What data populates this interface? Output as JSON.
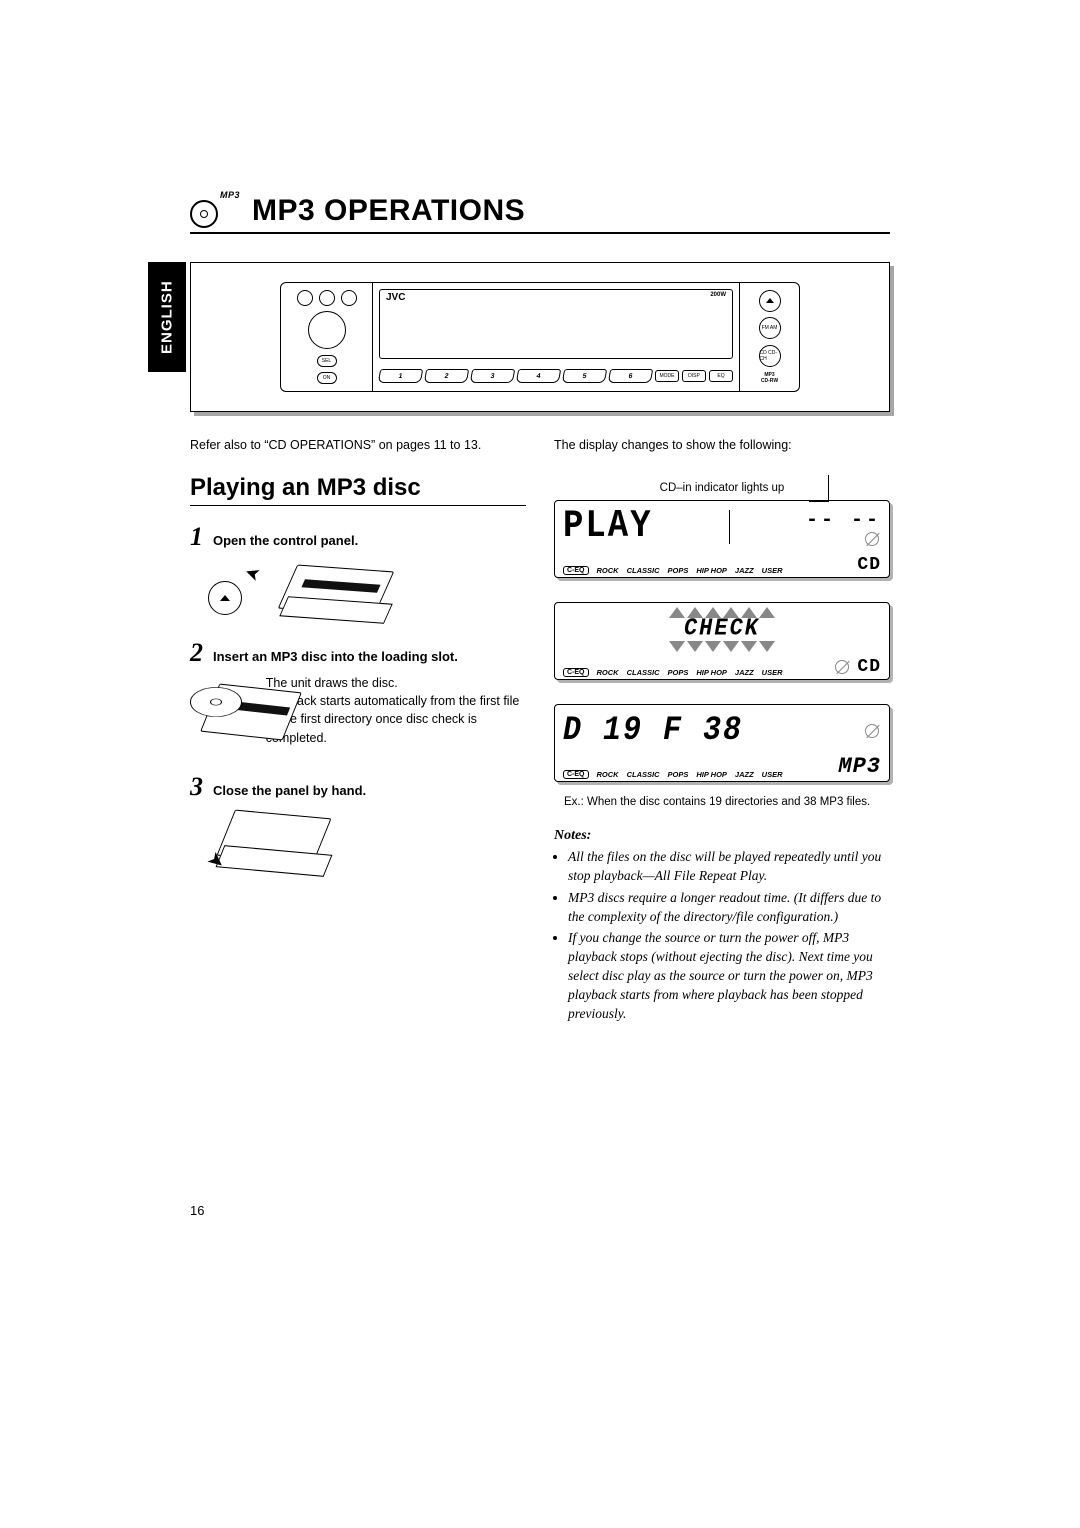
{
  "language_tab": "ENGLISH",
  "mp3_badge": "MP3",
  "page_title": "MP3 OPERATIONS",
  "intro_left": "Refer also to “CD OPERATIONS” on pages 11 to 13.",
  "section_heading": "Playing an MP3 disc",
  "steps": [
    {
      "num": "1",
      "title": "Open the control panel."
    },
    {
      "num": "2",
      "title": "Insert an MP3 disc into the loading slot.",
      "body": "The unit draws the disc.\nPlayback starts automatically from the first file of the first directory once disc check is completed."
    },
    {
      "num": "3",
      "title": "Close the panel by hand."
    }
  ],
  "stereo": {
    "brand": "JVC",
    "watt": "200W",
    "num_buttons": [
      "1",
      "2",
      "3",
      "4",
      "5",
      "6"
    ],
    "small_buttons": [
      "MODE",
      "DISP",
      "EQ"
    ],
    "right_buttons": [
      "FM AM",
      "CD CD-CH"
    ],
    "left_pills": [
      "SEL",
      "ON"
    ]
  },
  "right_intro": "The display changes to show the following:",
  "cd_caption": "CD–in indicator lights up",
  "eq_modes": [
    "ROCK",
    "CLASSIC",
    "POPS",
    "HIP HOP",
    "JAZZ",
    "USER"
  ],
  "ceq_label": "C-EQ",
  "cd_icon": "CD",
  "mp3_icon": "MP3",
  "lcd1_main": "PLAY",
  "lcd1_dashes": "-- --",
  "lcd2_main": "CHECK",
  "lcd3_main": "D 19  F 38",
  "example_caption": "Ex.: When the disc contains 19 directories and 38 MP3 files.",
  "notes_heading": "Notes:",
  "notes": [
    "All the files on the disc will be played repeatedly until you stop playback—All File Repeat Play.",
    "MP3 discs require a longer readout time. (It differs due to the complexity of the directory/file configuration.)",
    "If you change the source or turn the power off, MP3 playback stops (without ejecting the disc). Next time you select disc play as the source or turn the power on, MP3 playback starts from where playback has been stopped previously."
  ],
  "page_number": "16",
  "colors": {
    "text": "#000000",
    "bg": "#ffffff",
    "shadow": "rgba(0,0,0,0.35)",
    "grey": "#888888"
  }
}
